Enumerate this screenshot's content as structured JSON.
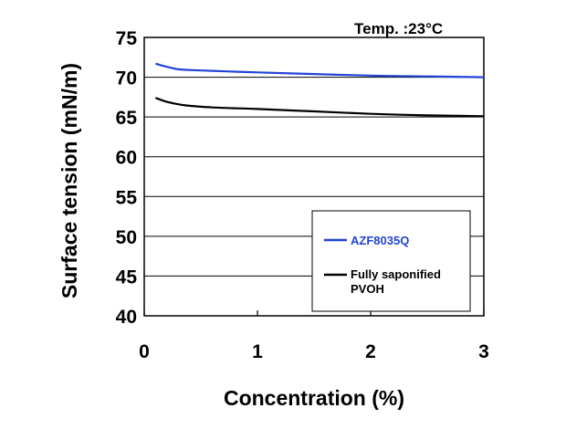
{
  "chart_data": {
    "type": "line",
    "title": "",
    "annotation": "Temp. :23°C",
    "xlabel": "Concentration (%)",
    "ylabel": "Surface tension (mN/m)",
    "xlim": [
      0,
      3
    ],
    "ylim": [
      40,
      75
    ],
    "xticks": [
      "0",
      "1",
      "2",
      "3"
    ],
    "yticks": [
      "40",
      "45",
      "50",
      "55",
      "60",
      "65",
      "70",
      "75"
    ],
    "grid": "horizontal",
    "legend_position": "lower-right",
    "series": [
      {
        "name": "AZF8035Q",
        "color": "#2343d6",
        "x": [
          0.1,
          0.2,
          0.3,
          0.4,
          0.6,
          0.8,
          1.0,
          1.5,
          2.0,
          2.5,
          3.0
        ],
        "y": [
          71.7,
          71.3,
          71.0,
          70.9,
          70.8,
          70.7,
          70.6,
          70.4,
          70.2,
          70.1,
          70.0
        ]
      },
      {
        "name": "Fully saponified\nPVOH",
        "color": "#000000",
        "x": [
          0.1,
          0.2,
          0.3,
          0.4,
          0.6,
          0.8,
          1.0,
          1.5,
          2.0,
          2.5,
          3.0
        ],
        "y": [
          67.4,
          66.9,
          66.6,
          66.4,
          66.2,
          66.1,
          66.0,
          65.7,
          65.4,
          65.2,
          65.1
        ]
      }
    ]
  }
}
